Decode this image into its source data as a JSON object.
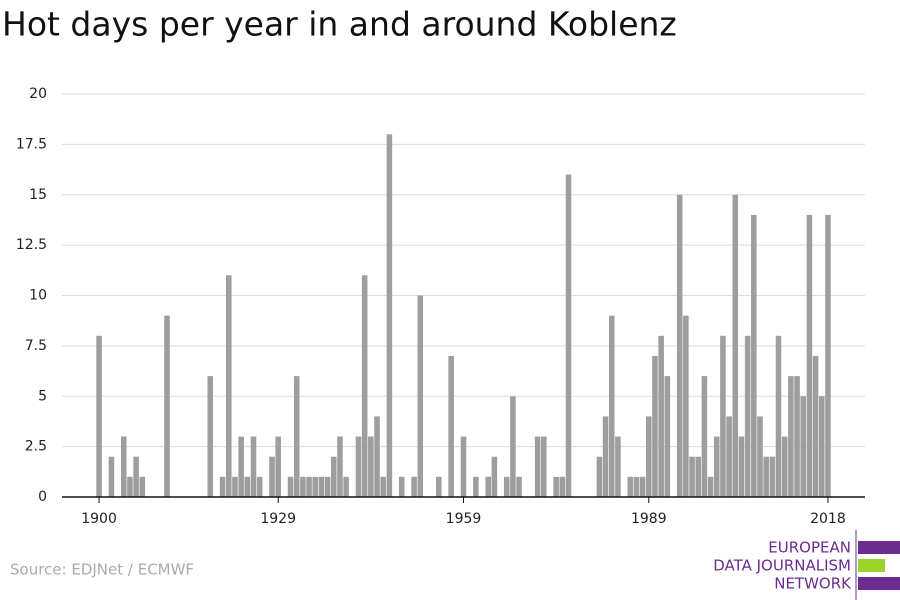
{
  "chart_data": {
    "type": "bar",
    "title": "Hot days per year in and around Koblenz",
    "x": [
      1900,
      1901,
      1902,
      1903,
      1904,
      1905,
      1906,
      1907,
      1908,
      1909,
      1910,
      1911,
      1912,
      1913,
      1914,
      1915,
      1916,
      1917,
      1918,
      1919,
      1920,
      1921,
      1922,
      1923,
      1924,
      1925,
      1926,
      1927,
      1928,
      1929,
      1930,
      1931,
      1932,
      1933,
      1934,
      1935,
      1936,
      1937,
      1938,
      1939,
      1940,
      1941,
      1942,
      1943,
      1944,
      1945,
      1946,
      1947,
      1948,
      1949,
      1950,
      1951,
      1952,
      1953,
      1954,
      1955,
      1956,
      1957,
      1958,
      1959,
      1960,
      1961,
      1962,
      1963,
      1964,
      1965,
      1966,
      1967,
      1968,
      1969,
      1970,
      1971,
      1972,
      1973,
      1974,
      1975,
      1976,
      1977,
      1978,
      1979,
      1980,
      1981,
      1982,
      1983,
      1984,
      1985,
      1986,
      1987,
      1988,
      1989,
      1990,
      1991,
      1992,
      1993,
      1994,
      1995,
      1996,
      1997,
      1998,
      1999,
      2000,
      2001,
      2002,
      2003,
      2004,
      2005,
      2006,
      2007,
      2008,
      2009,
      2010,
      2011,
      2012,
      2013,
      2014,
      2015,
      2016,
      2017,
      2018
    ],
    "values": [
      8,
      0,
      2,
      0,
      3,
      1,
      2,
      1,
      0,
      0,
      0,
      9,
      0,
      0,
      0,
      0,
      0,
      0,
      6,
      0,
      1,
      11,
      1,
      3,
      1,
      3,
      1,
      0,
      2,
      3,
      0,
      1,
      6,
      1,
      1,
      1,
      1,
      1,
      2,
      3,
      1,
      0,
      3,
      11,
      3,
      4,
      1,
      18,
      0,
      1,
      0,
      1,
      10,
      0,
      0,
      1,
      0,
      7,
      0,
      3,
      0,
      1,
      0,
      1,
      2,
      0,
      1,
      5,
      1,
      0,
      0,
      3,
      3,
      0,
      1,
      1,
      16,
      0,
      0,
      0,
      0,
      2,
      4,
      9,
      3,
      0,
      1,
      1,
      1,
      4,
      7,
      8,
      6,
      0,
      15,
      9,
      2,
      2,
      6,
      1,
      3,
      8,
      4,
      15,
      3,
      8,
      14,
      4,
      2,
      2,
      8,
      3,
      6,
      6,
      5,
      14,
      7,
      5,
      14
    ],
    "color": "#9e9e9e",
    "xlim": [
      1894,
      2024
    ],
    "xticks": [
      1900,
      1929,
      1959,
      1989,
      2018
    ],
    "ylim": [
      0,
      20
    ],
    "yticks": [
      0,
      2.5,
      5,
      7.5,
      10,
      12.5,
      15,
      17.5,
      20
    ],
    "grid": true,
    "source": "Source: EDJNet / ECMWF",
    "logo": [
      "EUROPEAN",
      "DATA JOURNALISM",
      "NETWORK"
    ]
  }
}
